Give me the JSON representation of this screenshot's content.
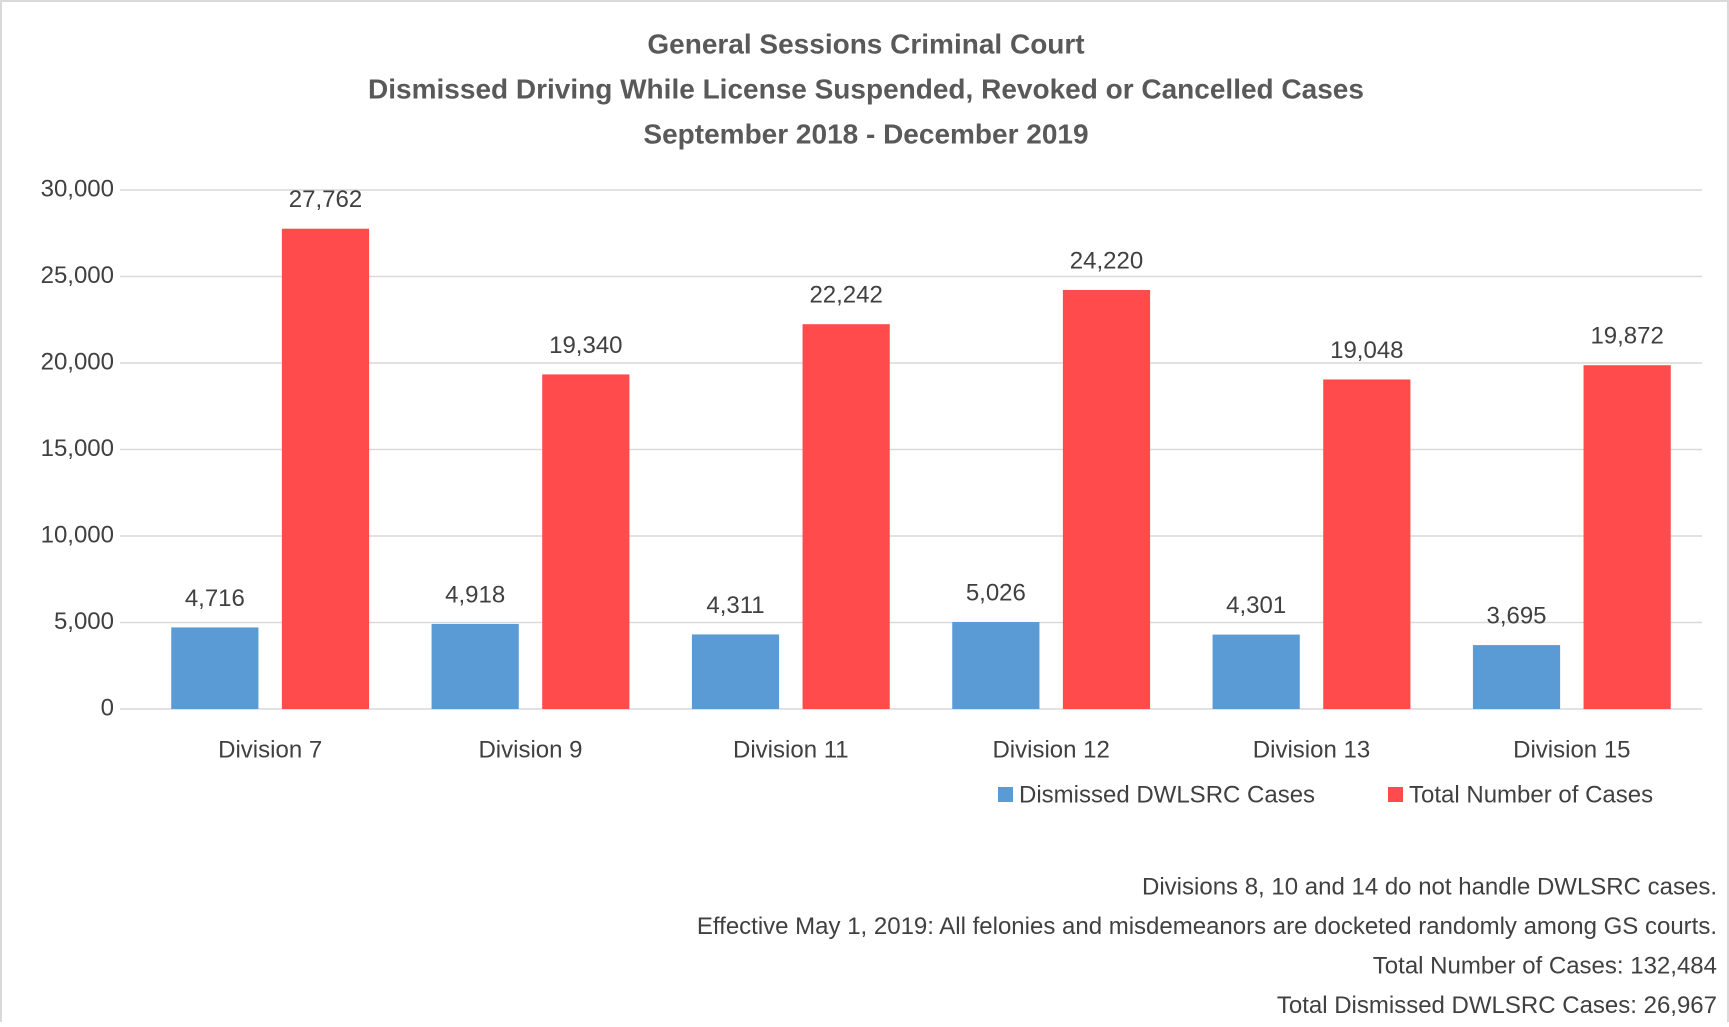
{
  "chart_data": {
    "type": "bar",
    "title": [
      "General Sessions Criminal Court",
      "Dismissed Driving While License Suspended, Revoked or Cancelled Cases",
      "September 2018 - December 2019"
    ],
    "categories": [
      "Division 7",
      "Division 9",
      "Division 11",
      "Division 12",
      "Division 13",
      "Division 15"
    ],
    "series": [
      {
        "name": "Dismissed DWLSRC Cases",
        "color": "#5b9bd5",
        "values": [
          4716,
          4918,
          4311,
          5026,
          4301,
          3695
        ],
        "value_labels": [
          "4,716",
          "4,918",
          "4,311",
          "5,026",
          "4,301",
          "3,695"
        ]
      },
      {
        "name": "Total Number of Cases",
        "color": "#ff4b4b",
        "values": [
          27762,
          19340,
          22242,
          24220,
          19048,
          19872
        ],
        "value_labels": [
          "27,762",
          "19,340",
          "22,242",
          "24,220",
          "19,048",
          "19,872"
        ]
      }
    ],
    "ylim": [
      0,
      30000
    ],
    "yticks": [
      0,
      {
        "value": 5000,
        "label": "5,000"
      },
      {
        "value": 10000,
        "label": "10,000"
      },
      {
        "value": 15000,
        "label": "15,000"
      },
      {
        "value": 20000,
        "label": "20,000"
      },
      {
        "value": 25000,
        "label": "25,000"
      },
      {
        "value": 30000,
        "label": "30,000"
      }
    ],
    "grid": true,
    "legend": "bottom-right",
    "notes": [
      "Divisions 8, 10 and 14 do not handle DWLSRC cases.",
      "Effective May 1, 2019: All felonies and misdemeanors are docketed randomly among GS courts.",
      "Total Number of Cases: 132,484",
      "Total Dismissed DWLSRC Cases: 26,967"
    ]
  }
}
